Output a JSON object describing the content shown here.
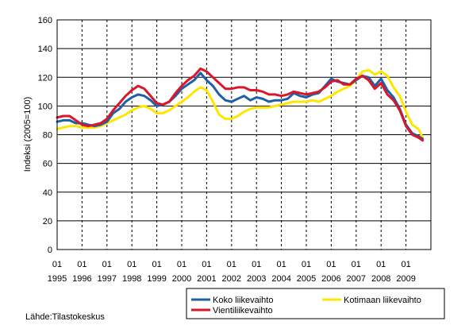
{
  "chart_data": {
    "type": "line",
    "title": "",
    "ylabel": "Indeksi (2005=100)",
    "xlabel": "",
    "ylim": [
      0,
      160
    ],
    "yticks": [
      0,
      20,
      40,
      60,
      80,
      100,
      120,
      140,
      160
    ],
    "x_start": 1995,
    "x_end": 2010,
    "x_tick_month": "01",
    "x_tick_years": [
      "1995",
      "1996",
      "1997",
      "1998",
      "1999",
      "2000",
      "2001",
      "2002",
      "2003",
      "2004",
      "2005",
      "2006",
      "2007",
      "2008",
      "2009"
    ],
    "grid": true,
    "legend_position": "bottom-right",
    "source": "Lähde:Tilastokeskus",
    "series": [
      {
        "name": "Koko liikevaihto",
        "color": "#1f5fa5",
        "points": [
          [
            1995.0,
            89
          ],
          [
            1995.25,
            90
          ],
          [
            1995.5,
            90
          ],
          [
            1995.75,
            88
          ],
          [
            1996.0,
            88
          ],
          [
            1996.25,
            87
          ],
          [
            1996.5,
            86
          ],
          [
            1996.75,
            87
          ],
          [
            1997.0,
            89
          ],
          [
            1997.25,
            95
          ],
          [
            1997.5,
            98
          ],
          [
            1997.75,
            103
          ],
          [
            1998.0,
            106
          ],
          [
            1998.25,
            108
          ],
          [
            1998.5,
            107
          ],
          [
            1998.75,
            104
          ],
          [
            1999.0,
            100
          ],
          [
            1999.25,
            101
          ],
          [
            1999.5,
            103
          ],
          [
            1999.75,
            107
          ],
          [
            2000.0,
            112
          ],
          [
            2000.25,
            115
          ],
          [
            2000.5,
            118
          ],
          [
            2000.75,
            123
          ],
          [
            2001.0,
            118
          ],
          [
            2001.25,
            114
          ],
          [
            2001.5,
            108
          ],
          [
            2001.75,
            104
          ],
          [
            2002.0,
            103
          ],
          [
            2002.25,
            105
          ],
          [
            2002.5,
            107
          ],
          [
            2002.75,
            104
          ],
          [
            2003.0,
            106
          ],
          [
            2003.25,
            105
          ],
          [
            2003.5,
            103
          ],
          [
            2003.75,
            104
          ],
          [
            2004.0,
            104
          ],
          [
            2004.25,
            105
          ],
          [
            2004.5,
            109
          ],
          [
            2004.75,
            107
          ],
          [
            2005.0,
            106
          ],
          [
            2005.25,
            108
          ],
          [
            2005.5,
            109
          ],
          [
            2005.75,
            114
          ],
          [
            2006.0,
            119
          ],
          [
            2006.25,
            117
          ],
          [
            2006.5,
            116
          ],
          [
            2006.75,
            115
          ],
          [
            2007.0,
            118
          ],
          [
            2007.25,
            121
          ],
          [
            2007.5,
            120
          ],
          [
            2007.75,
            114
          ],
          [
            2008.0,
            119
          ],
          [
            2008.25,
            111
          ],
          [
            2008.5,
            106
          ],
          [
            2008.75,
            98
          ],
          [
            2009.0,
            87
          ],
          [
            2009.25,
            81
          ],
          [
            2009.5,
            79
          ],
          [
            2009.67,
            77
          ]
        ]
      },
      {
        "name": "Kotimaan liikevaihto",
        "color": "#ffe600",
        "points": [
          [
            1995.0,
            84
          ],
          [
            1995.25,
            85
          ],
          [
            1995.5,
            86
          ],
          [
            1995.75,
            86
          ],
          [
            1996.0,
            85
          ],
          [
            1996.25,
            85
          ],
          [
            1996.5,
            85
          ],
          [
            1996.75,
            86
          ],
          [
            1997.0,
            88
          ],
          [
            1997.25,
            90
          ],
          [
            1997.5,
            92
          ],
          [
            1997.75,
            94
          ],
          [
            1998.0,
            97
          ],
          [
            1998.25,
            99
          ],
          [
            1998.5,
            100
          ],
          [
            1998.75,
            98
          ],
          [
            1999.0,
            95
          ],
          [
            1999.25,
            95
          ],
          [
            1999.5,
            97
          ],
          [
            1999.75,
            100
          ],
          [
            2000.0,
            103
          ],
          [
            2000.25,
            106
          ],
          [
            2000.5,
            110
          ],
          [
            2000.75,
            113
          ],
          [
            2001.0,
            111
          ],
          [
            2001.25,
            103
          ],
          [
            2001.5,
            94
          ],
          [
            2001.75,
            91
          ],
          [
            2002.0,
            91
          ],
          [
            2002.25,
            93
          ],
          [
            2002.5,
            96
          ],
          [
            2002.75,
            98
          ],
          [
            2003.0,
            99
          ],
          [
            2003.25,
            99
          ],
          [
            2003.5,
            99
          ],
          [
            2003.75,
            100
          ],
          [
            2004.0,
            101
          ],
          [
            2004.25,
            102
          ],
          [
            2004.5,
            103
          ],
          [
            2004.75,
            103
          ],
          [
            2005.0,
            103
          ],
          [
            2005.25,
            104
          ],
          [
            2005.5,
            103
          ],
          [
            2005.75,
            105
          ],
          [
            2006.0,
            107
          ],
          [
            2006.25,
            110
          ],
          [
            2006.5,
            112
          ],
          [
            2006.75,
            114
          ],
          [
            2007.0,
            118
          ],
          [
            2007.25,
            124
          ],
          [
            2007.5,
            125
          ],
          [
            2007.75,
            122
          ],
          [
            2008.0,
            124
          ],
          [
            2008.25,
            121
          ],
          [
            2008.5,
            113
          ],
          [
            2008.75,
            107
          ],
          [
            2009.0,
            96
          ],
          [
            2009.25,
            87
          ],
          [
            2009.5,
            84
          ],
          [
            2009.67,
            78
          ]
        ]
      },
      {
        "name": "Vientiliikevaihto",
        "color": "#d9162a",
        "points": [
          [
            1995.0,
            92
          ],
          [
            1995.25,
            93
          ],
          [
            1995.5,
            93
          ],
          [
            1995.75,
            90
          ],
          [
            1996.0,
            87
          ],
          [
            1996.25,
            86
          ],
          [
            1996.5,
            87
          ],
          [
            1996.75,
            88
          ],
          [
            1997.0,
            91
          ],
          [
            1997.25,
            97
          ],
          [
            1997.5,
            102
          ],
          [
            1997.75,
            107
          ],
          [
            1998.0,
            111
          ],
          [
            1998.25,
            114
          ],
          [
            1998.5,
            112
          ],
          [
            1998.75,
            107
          ],
          [
            1999.0,
            102
          ],
          [
            1999.25,
            101
          ],
          [
            1999.5,
            103
          ],
          [
            1999.75,
            109
          ],
          [
            2000.0,
            114
          ],
          [
            2000.25,
            118
          ],
          [
            2000.5,
            121
          ],
          [
            2000.75,
            126
          ],
          [
            2001.0,
            124
          ],
          [
            2001.25,
            120
          ],
          [
            2001.5,
            116
          ],
          [
            2001.75,
            112
          ],
          [
            2002.0,
            112
          ],
          [
            2002.25,
            113
          ],
          [
            2002.5,
            113
          ],
          [
            2002.75,
            111
          ],
          [
            2003.0,
            111
          ],
          [
            2003.25,
            110
          ],
          [
            2003.5,
            108
          ],
          [
            2003.75,
            108
          ],
          [
            2004.0,
            107
          ],
          [
            2004.25,
            108
          ],
          [
            2004.5,
            110
          ],
          [
            2004.75,
            109
          ],
          [
            2005.0,
            108
          ],
          [
            2005.25,
            109
          ],
          [
            2005.5,
            110
          ],
          [
            2005.75,
            113
          ],
          [
            2006.0,
            117
          ],
          [
            2006.25,
            118
          ],
          [
            2006.5,
            115
          ],
          [
            2006.75,
            115
          ],
          [
            2007.0,
            119
          ],
          [
            2007.25,
            121
          ],
          [
            2007.5,
            118
          ],
          [
            2007.75,
            112
          ],
          [
            2008.0,
            116
          ],
          [
            2008.25,
            108
          ],
          [
            2008.5,
            104
          ],
          [
            2008.75,
            97
          ],
          [
            2009.0,
            86
          ],
          [
            2009.25,
            80
          ],
          [
            2009.5,
            78
          ],
          [
            2009.67,
            76
          ]
        ]
      }
    ]
  }
}
